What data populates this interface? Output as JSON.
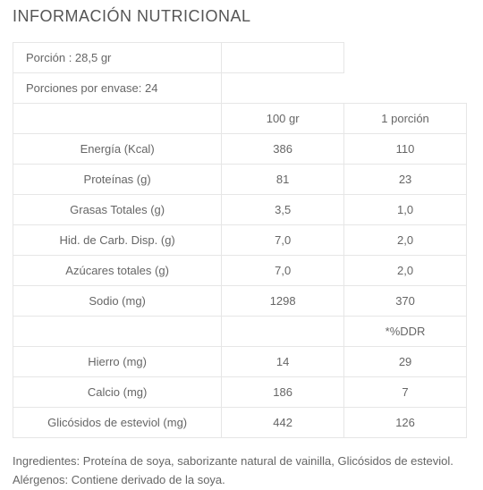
{
  "title": "INFORMACIÓN NUTRICIONAL",
  "portion": "Porción : 28,5 gr",
  "servings": "Porciones por envase: 24",
  "col1": "100 gr",
  "col2": "1 porción",
  "rows": [
    {
      "label": "Energía (Kcal)",
      "v1": "386",
      "v2": "110"
    },
    {
      "label": "Proteínas (g)",
      "v1": "81",
      "v2": "23"
    },
    {
      "label": "Grasas Totales (g)",
      "v1": "3,5",
      "v2": "1,0"
    },
    {
      "label": "Hid. de Carb. Disp. (g)",
      "v1": "7,0",
      "v2": "2,0"
    },
    {
      "label": "Azúcares totales (g)",
      "v1": "7,0",
      "v2": "2,0"
    },
    {
      "label": "Sodio (mg)",
      "v1": "1298",
      "v2": "370"
    }
  ],
  "ddr": "*%DDR",
  "rows2": [
    {
      "label": "Hierro (mg)",
      "v1": "14",
      "v2": "29"
    },
    {
      "label": "Calcio (mg)",
      "v1": "186",
      "v2": "7"
    },
    {
      "label": "Glicósidos de esteviol (mg)",
      "v1": "442",
      "v2": "126"
    }
  ],
  "ingredients": "Ingredientes: Proteína de soya, saborizante natural de vainilla, Glicósidos de esteviol.",
  "allergens": "Alérgenos: Contiene derivado de la soya."
}
